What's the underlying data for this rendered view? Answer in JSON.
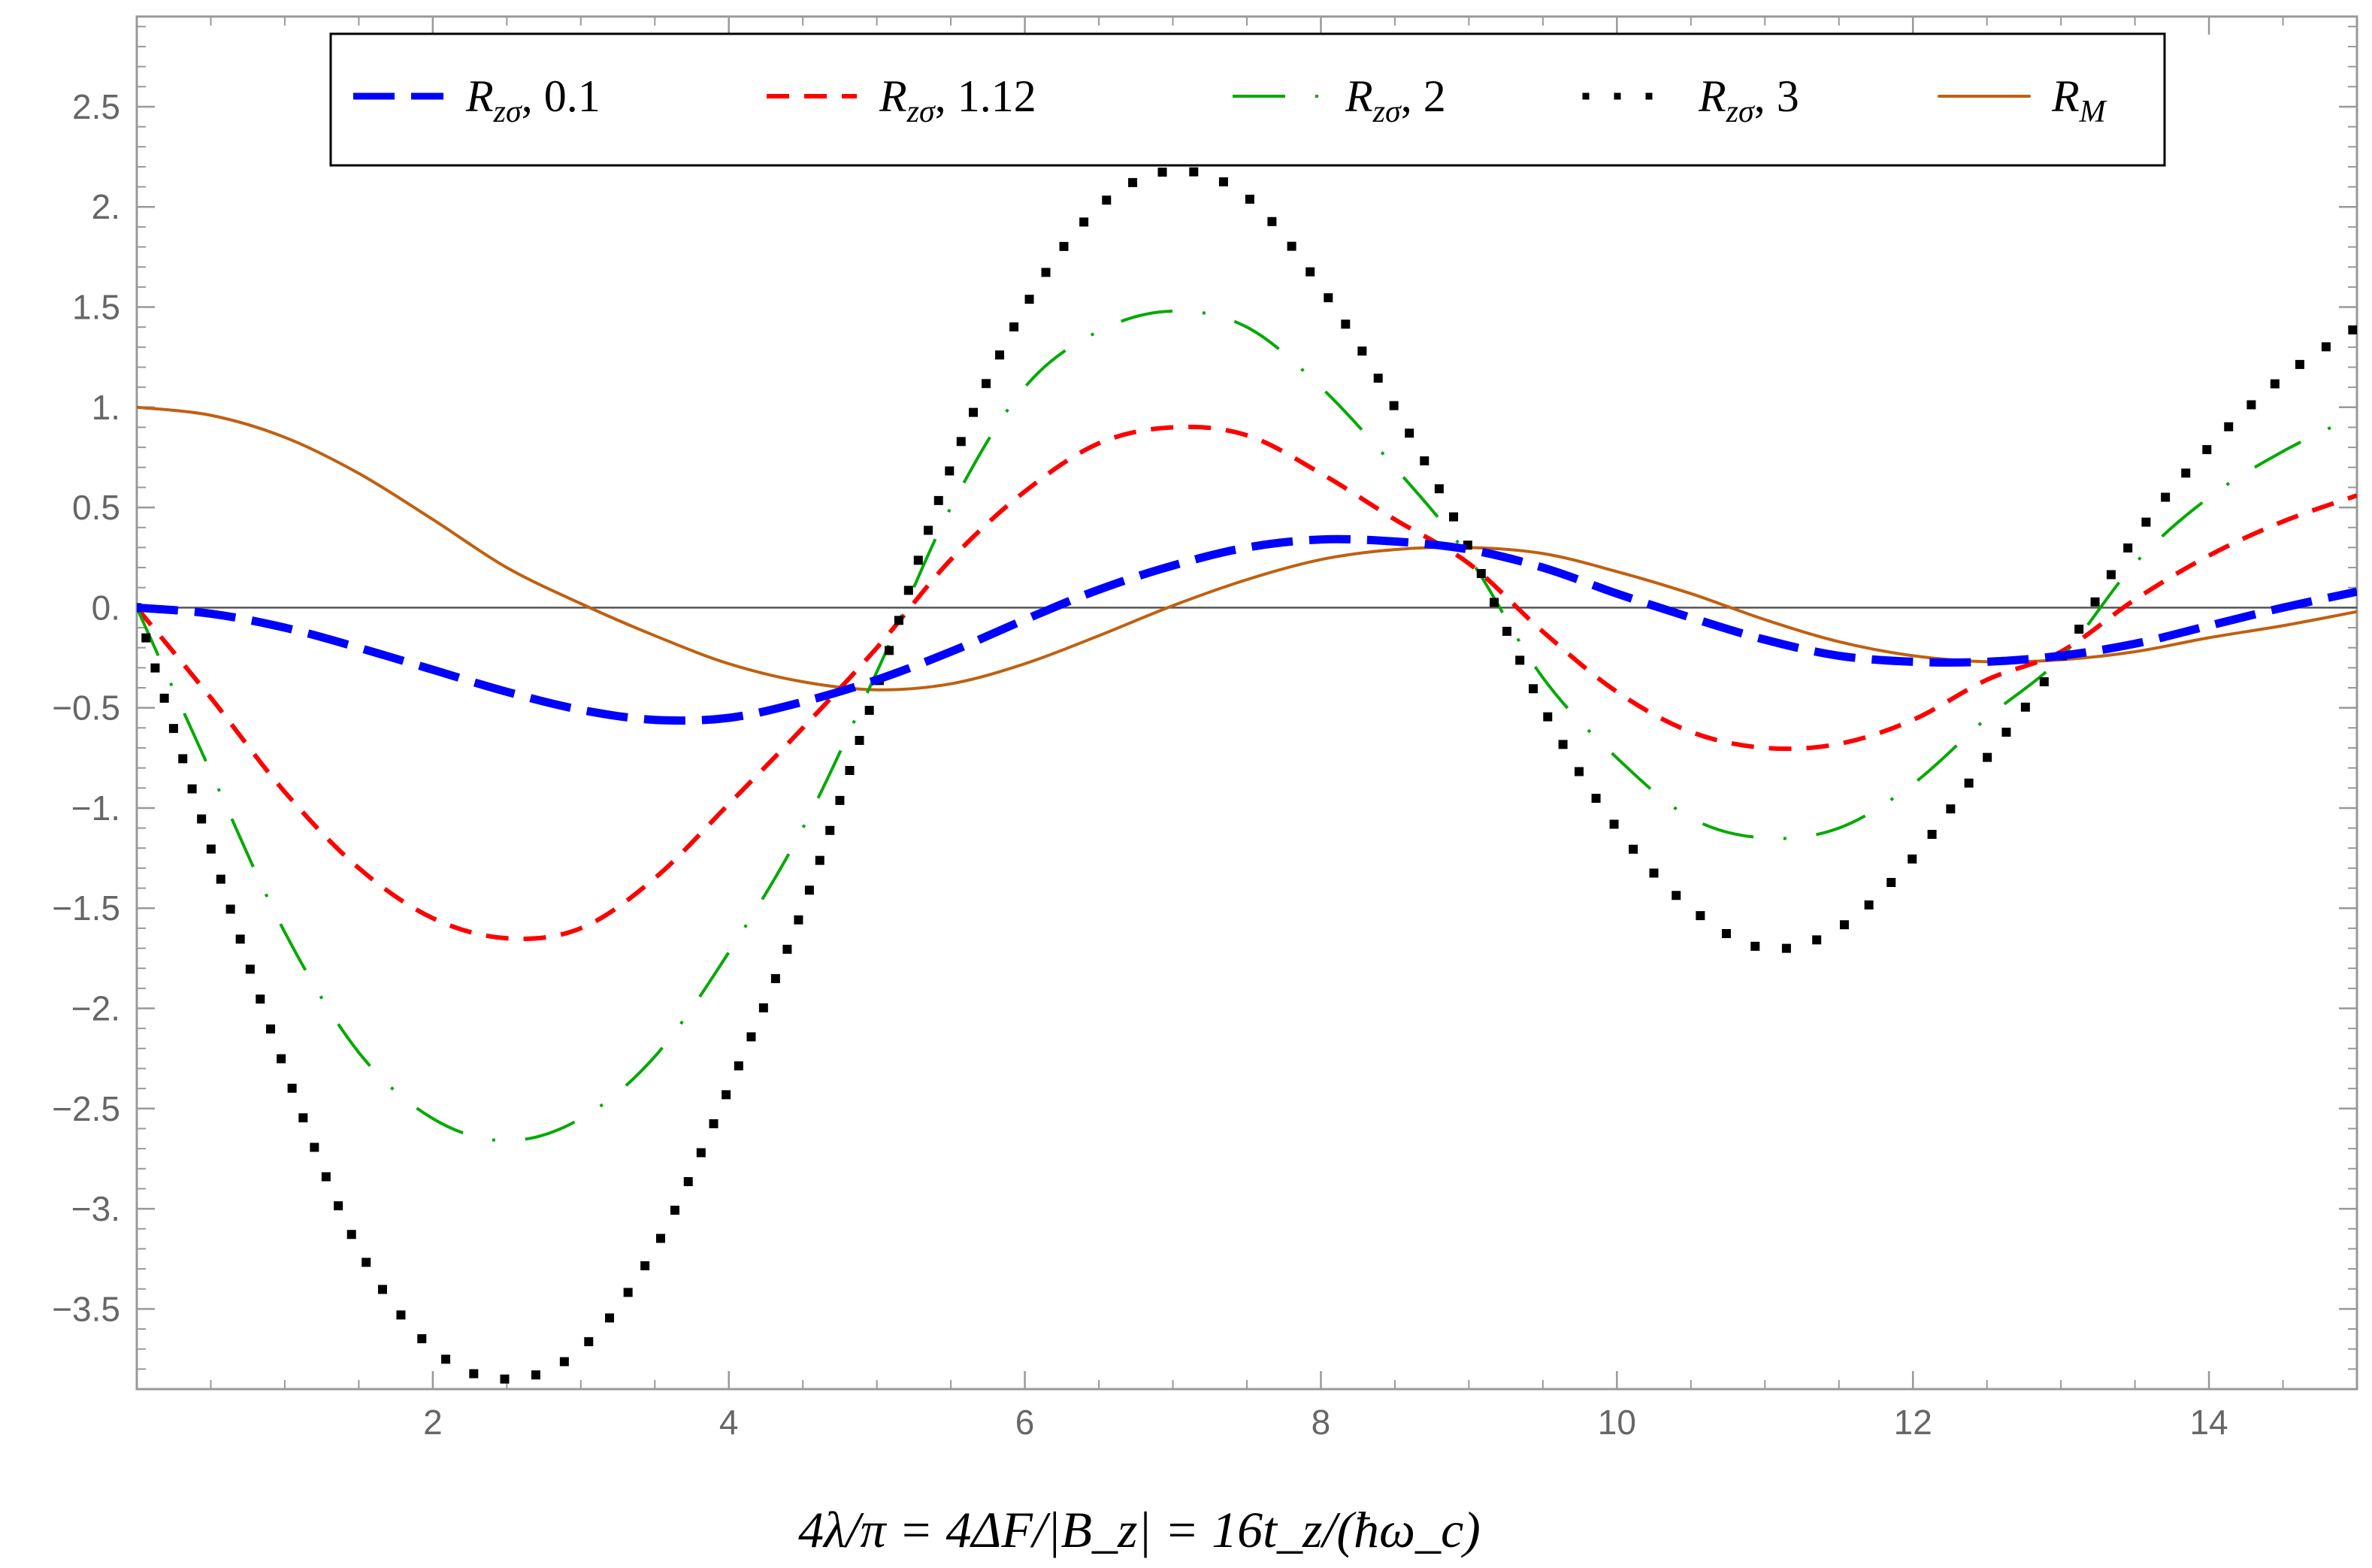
{
  "chart_data": {
    "type": "line",
    "title": "",
    "xlabel": "4λ/π = 4ΔF/|B_z| = 16t_z/(ħω_c)",
    "ylabel": "",
    "xlim": [
      0,
      15
    ],
    "ylim": [
      -3.9,
      2.95
    ],
    "grid": false,
    "legend_position": "top",
    "x_ticks": [
      {
        "value": 2,
        "label": "2"
      },
      {
        "value": 4,
        "label": "4"
      },
      {
        "value": 6,
        "label": "6"
      },
      {
        "value": 8,
        "label": "8"
      },
      {
        "value": 10,
        "label": "10"
      },
      {
        "value": 12,
        "label": "12"
      },
      {
        "value": 14,
        "label": "14"
      }
    ],
    "y_ticks": [
      {
        "value": 2.5,
        "label": "2.5"
      },
      {
        "value": 2.0,
        "label": "2."
      },
      {
        "value": 1.5,
        "label": "1.5"
      },
      {
        "value": 1.0,
        "label": "1."
      },
      {
        "value": 0.5,
        "label": "0.5"
      },
      {
        "value": 0.0,
        "label": "0."
      },
      {
        "value": -0.5,
        "label": "−0.5"
      },
      {
        "value": -1.0,
        "label": "−1."
      },
      {
        "value": -1.5,
        "label": "−1.5"
      },
      {
        "value": -2.0,
        "label": "−2."
      },
      {
        "value": -2.5,
        "label": "−2.5"
      },
      {
        "value": -3.0,
        "label": "−3."
      },
      {
        "value": -3.5,
        "label": "−3.5"
      }
    ],
    "series": [
      {
        "name": "R_zσ, 0.1",
        "label_main": "R",
        "label_sub": "zσ",
        "label_rest": ", 0.1",
        "color": "#0000ff",
        "style": "long-dash-thick",
        "x": [
          0,
          0.5,
          1,
          1.5,
          2,
          2.5,
          3,
          3.5,
          4,
          4.5,
          5,
          5.5,
          6,
          6.5,
          7,
          7.5,
          8,
          8.5,
          9,
          9.5,
          10,
          10.5,
          11,
          11.5,
          12,
          12.5,
          13,
          13.5,
          14,
          14.5,
          15
        ],
        "y": [
          0,
          -0.03,
          -0.1,
          -0.2,
          -0.31,
          -0.42,
          -0.51,
          -0.56,
          -0.55,
          -0.47,
          -0.36,
          -0.22,
          -0.06,
          0.09,
          0.21,
          0.3,
          0.34,
          0.33,
          0.29,
          0.2,
          0.07,
          -0.05,
          -0.16,
          -0.24,
          -0.27,
          -0.27,
          -0.24,
          -0.18,
          -0.09,
          0,
          0.08
        ]
      },
      {
        "name": "R_zσ, 1.12",
        "label_main": "R",
        "label_sub": "zσ",
        "label_rest": ", 1.12",
        "color": "#ff0000",
        "style": "dash",
        "x": [
          0,
          0.5,
          1,
          1.5,
          2,
          2.5,
          3,
          3.5,
          4,
          4.5,
          5,
          5.5,
          6,
          6.5,
          7,
          7.5,
          8,
          8.5,
          9,
          9.5,
          10,
          10.5,
          11,
          11.5,
          12,
          12.5,
          13,
          13.5,
          14,
          14.5,
          15
        ],
        "y": [
          0,
          -0.45,
          -0.92,
          -1.3,
          -1.55,
          -1.65,
          -1.6,
          -1.35,
          -0.98,
          -0.6,
          -0.2,
          0.24,
          0.58,
          0.82,
          0.9,
          0.86,
          0.67,
          0.44,
          0.22,
          -0.12,
          -0.42,
          -0.62,
          -0.7,
          -0.68,
          -0.56,
          -0.36,
          -0.22,
          0.04,
          0.26,
          0.43,
          0.56
        ]
      },
      {
        "name": "R_zσ, 2",
        "label_main": "R",
        "label_sub": "zσ",
        "label_rest": ", 2",
        "color": "#00aa00",
        "style": "long-gap-dash",
        "x": [
          0,
          0.5,
          1,
          1.5,
          2,
          2.5,
          3,
          3.5,
          4,
          4.5,
          5,
          5.5,
          6,
          6.5,
          7,
          7.5,
          8,
          8.5,
          9,
          9.5,
          10,
          10.5,
          11,
          11.5,
          12,
          12.5,
          13,
          13.5,
          14,
          14.5,
          15
        ],
        "y": [
          0,
          -0.82,
          -1.62,
          -2.22,
          -2.55,
          -2.66,
          -2.55,
          -2.24,
          -1.72,
          -1.1,
          -0.32,
          0.5,
          1.1,
          1.38,
          1.48,
          1.4,
          1.1,
          0.7,
          0.25,
          -0.35,
          -0.75,
          -1.05,
          -1.15,
          -1.1,
          -0.88,
          -0.55,
          -0.25,
          0.22,
          0.55,
          0.78,
          0.96
        ]
      },
      {
        "name": "R_zσ, 3",
        "label_main": "R",
        "label_sub": "zσ",
        "label_rest": ", 3",
        "color": "#000000",
        "style": "dot",
        "x": [
          0,
          0.5,
          1,
          1.5,
          2,
          2.5,
          3,
          3.5,
          4,
          4.5,
          5,
          5.5,
          6,
          6.5,
          7,
          7.5,
          8,
          8.5,
          9,
          9.5,
          10,
          10.5,
          11,
          11.5,
          12,
          12.5,
          13,
          13.5,
          14,
          14.5,
          15
        ],
        "y": [
          0,
          -1.2,
          -2.3,
          -3.2,
          -3.7,
          -3.85,
          -3.7,
          -3.2,
          -2.4,
          -1.5,
          -0.4,
          0.7,
          1.5,
          2.0,
          2.18,
          2.05,
          1.6,
          1.0,
          0.3,
          -0.5,
          -1.1,
          -1.5,
          -1.7,
          -1.6,
          -1.25,
          -0.75,
          -0.25,
          0.35,
          0.8,
          1.15,
          1.4
        ]
      },
      {
        "name": "R_M",
        "label_main": "R",
        "label_sub": "M",
        "label_rest": "",
        "color": "#c06010",
        "style": "solid",
        "x": [
          0,
          0.5,
          1,
          1.5,
          2,
          2.5,
          3,
          3.5,
          4,
          4.5,
          5,
          5.5,
          6,
          6.5,
          7,
          7.5,
          8,
          8.5,
          9,
          9.5,
          10,
          10.5,
          11,
          11.5,
          12,
          12.5,
          13,
          13.5,
          14,
          14.5,
          15
        ],
        "y": [
          1.0,
          0.96,
          0.85,
          0.67,
          0.44,
          0.2,
          0.02,
          -0.14,
          -0.28,
          -0.37,
          -0.41,
          -0.38,
          -0.28,
          -0.14,
          0.01,
          0.14,
          0.24,
          0.29,
          0.3,
          0.27,
          0.18,
          0.07,
          -0.06,
          -0.17,
          -0.24,
          -0.27,
          -0.26,
          -0.22,
          -0.15,
          -0.09,
          -0.02
        ]
      }
    ]
  }
}
